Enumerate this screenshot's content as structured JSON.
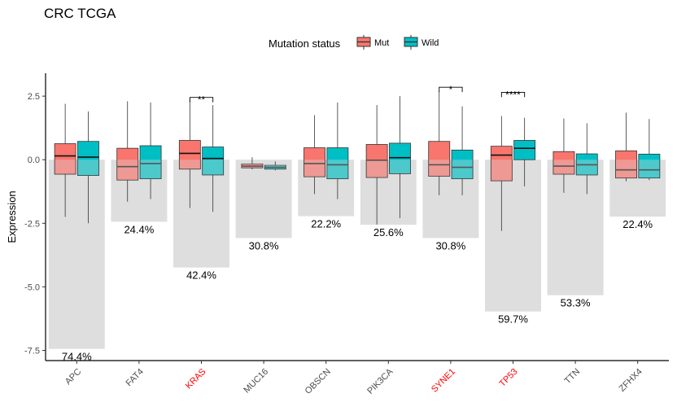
{
  "chart_data": {
    "type": "boxplot+bar",
    "title": "CRC TCGA",
    "ylabel": "Expression",
    "xlabel": "",
    "ylim": [
      -7.9,
      3.4
    ],
    "yticks": [
      2.5,
      0.0,
      -2.5,
      -5.0,
      -7.5
    ],
    "ytick_labels": [
      "2.5",
      "0.0",
      "-2.5",
      "-5.0",
      "-7.5"
    ],
    "legend": {
      "title": "Mutation status",
      "placement": "top-center",
      "items": [
        {
          "name": "Mut",
          "color": "#F8766D"
        },
        {
          "name": "Wild",
          "color": "#00BFC4"
        }
      ]
    },
    "bar_color": "#dedede",
    "highlight_color": "#ff0000",
    "categories": [
      "APC",
      "FAT4",
      "KRAS",
      "MUC16",
      "OBSCN",
      "PIK3CA",
      "SYNE1",
      "TP53",
      "TTN",
      "ZFHX4"
    ],
    "highlighted": [
      false,
      false,
      true,
      false,
      false,
      false,
      true,
      true,
      false,
      false
    ],
    "mutation_percent_labels": [
      "74.4%",
      "24.4%",
      "42.4%",
      "30.8%",
      "22.2%",
      "25.6%",
      "30.8%",
      "59.7%",
      "53.3%",
      "22.4%"
    ],
    "mutation_frequency": [
      74.4,
      24.4,
      42.4,
      30.8,
      22.2,
      25.6,
      30.8,
      59.7,
      53.3,
      22.4
    ],
    "bar_scale": 0.1,
    "series": [
      {
        "name": "Mut",
        "boxes": [
          {
            "min": -2.25,
            "q1": -0.57,
            "median": 0.15,
            "q3": 0.63,
            "max": 2.2
          },
          {
            "min": -1.65,
            "q1": -0.8,
            "median": -0.27,
            "q3": 0.45,
            "max": 2.3
          },
          {
            "min": -1.9,
            "q1": -0.37,
            "median": 0.25,
            "q3": 0.76,
            "max": 2.4
          },
          {
            "min": -0.38,
            "q1": -0.32,
            "median": -0.25,
            "q3": -0.17,
            "max": 0.1
          },
          {
            "min": -1.35,
            "q1": -0.67,
            "median": -0.15,
            "q3": 0.47,
            "max": 1.75
          },
          {
            "min": -2.55,
            "q1": -0.7,
            "median": -0.02,
            "q3": 0.6,
            "max": 2.15
          },
          {
            "min": -1.4,
            "q1": -0.65,
            "median": -0.2,
            "q3": 0.72,
            "max": 2.7
          },
          {
            "min": -2.8,
            "q1": -0.83,
            "median": 0.18,
            "q3": 0.53,
            "max": 1.72
          },
          {
            "min": -1.3,
            "q1": -0.57,
            "median": -0.25,
            "q3": 0.32,
            "max": 1.62
          },
          {
            "min": -0.85,
            "q1": -0.72,
            "median": -0.4,
            "q3": 0.35,
            "max": 1.85
          }
        ]
      },
      {
        "name": "Wild",
        "boxes": [
          {
            "min": -2.5,
            "q1": -0.62,
            "median": 0.1,
            "q3": 0.72,
            "max": 1.9
          },
          {
            "min": -1.55,
            "q1": -0.75,
            "median": -0.15,
            "q3": 0.55,
            "max": 2.25
          },
          {
            "min": -2.05,
            "q1": -0.6,
            "median": 0.05,
            "q3": 0.5,
            "max": 2.15
          },
          {
            "min": -0.42,
            "q1": -0.37,
            "median": -0.3,
            "q3": -0.22,
            "max": -0.07
          },
          {
            "min": -1.55,
            "q1": -0.75,
            "median": -0.2,
            "q3": 0.47,
            "max": 2.25
          },
          {
            "min": -2.3,
            "q1": -0.55,
            "median": 0.08,
            "q3": 0.65,
            "max": 2.5
          },
          {
            "min": -1.4,
            "q1": -0.75,
            "median": -0.3,
            "q3": 0.38,
            "max": 2.1
          },
          {
            "min": -1.05,
            "q1": 0.0,
            "median": 0.45,
            "q3": 0.76,
            "max": 1.65
          },
          {
            "min": -1.35,
            "q1": -0.6,
            "median": -0.2,
            "q3": 0.23,
            "max": 1.43
          },
          {
            "min": -0.8,
            "q1": -0.72,
            "median": -0.4,
            "q3": 0.22,
            "max": 1.6
          }
        ]
      }
    ],
    "significance": [
      {
        "category": "KRAS",
        "label": "**",
        "y": 2.45
      },
      {
        "category": "SYNE1",
        "label": "*",
        "y": 2.85
      },
      {
        "category": "TP53",
        "label": "****",
        "y": 2.65
      }
    ],
    "grid": false
  }
}
